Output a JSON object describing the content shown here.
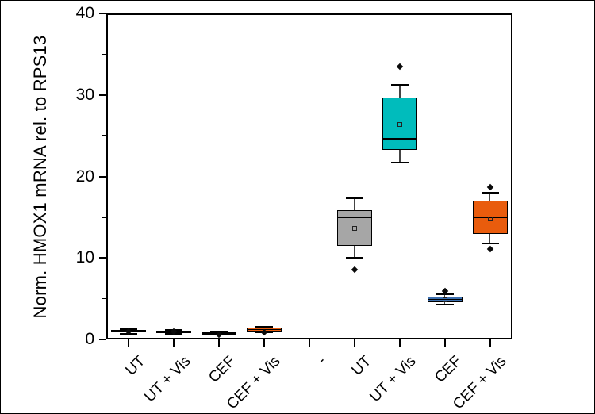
{
  "figure": {
    "background": "#ffffff",
    "frame_color": "#000000"
  },
  "chart_data": {
    "type": "box",
    "title": "",
    "xlabel": "",
    "ylabel": "Norm. HMOX1 mRNA rel. to RPS13",
    "ylim": [
      0,
      40
    ],
    "y_major_ticks": [
      0,
      10,
      20,
      30,
      40
    ],
    "y_minor_ticks": [
      5,
      15,
      25,
      35
    ],
    "grid": false,
    "legend": "none",
    "categories": [
      "UT",
      "UT + Vis",
      "CEF",
      "CEF + Vis",
      "-",
      "UT",
      "UT + Vis",
      "CEF",
      "CEF + Vis"
    ],
    "boxes": [
      {
        "category": "UT",
        "color": "#a6a6a6",
        "whisker_low": 0.7,
        "q1": 0.85,
        "median": 1.0,
        "q3": 1.15,
        "whisker_high": 1.3,
        "mean": null,
        "outliers": [
          1.0
        ]
      },
      {
        "category": "UT + Vis",
        "color": "#00bcbc",
        "whisker_low": 0.7,
        "q1": 0.8,
        "median": 0.95,
        "q3": 1.1,
        "whisker_high": 1.2,
        "mean": null,
        "outliers": [
          0.95
        ]
      },
      {
        "category": "CEF",
        "color": "#3c6fae",
        "whisker_low": 0.6,
        "q1": 0.65,
        "median": 0.8,
        "q3": 0.9,
        "whisker_high": 1.0,
        "mean": null,
        "outliers": [
          0.55
        ]
      },
      {
        "category": "CEF + Vis",
        "color": "#e95c0d",
        "whisker_low": 0.9,
        "q1": 1.0,
        "median": 1.2,
        "q3": 1.5,
        "whisker_high": 1.55,
        "mean": null,
        "outliers": [
          0.85
        ]
      },
      {
        "category": "-",
        "empty": true
      },
      {
        "category": "UT",
        "color": "#a6a6a6",
        "whisker_low": 10.0,
        "q1": 11.5,
        "median": 15.0,
        "q3": 15.9,
        "whisker_high": 17.3,
        "mean": 13.6,
        "outliers": [
          8.6
        ]
      },
      {
        "category": "UT + Vis",
        "color": "#00bcbc",
        "whisker_low": 21.7,
        "q1": 23.3,
        "median": 24.6,
        "q3": 29.7,
        "whisker_high": 31.2,
        "mean": 26.4,
        "outliers": [
          33.5
        ]
      },
      {
        "category": "CEF",
        "color": "#3c6fae",
        "whisker_low": 4.3,
        "q1": 4.6,
        "median": 4.9,
        "q3": 5.3,
        "whisker_high": 5.5,
        "mean": 4.9,
        "outliers": [
          5.9
        ]
      },
      {
        "category": "CEF + Vis",
        "color": "#e95c0d",
        "whisker_low": 11.8,
        "q1": 12.9,
        "median": 15.0,
        "q3": 17.0,
        "whisker_high": 18.0,
        "mean": 14.8,
        "outliers": [
          18.7,
          11.1
        ]
      }
    ]
  }
}
